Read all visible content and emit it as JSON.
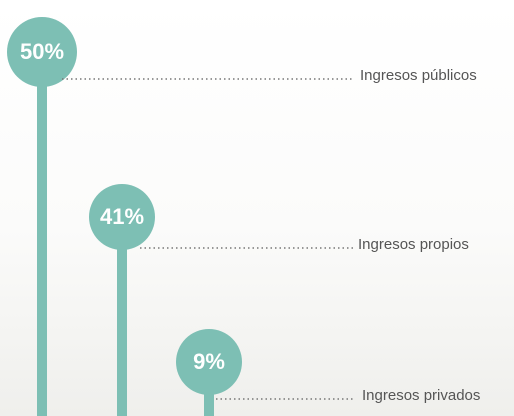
{
  "chart_data": {
    "type": "lollipop",
    "categories": [
      "Ingresos públicos",
      "Ingresos propios",
      "Ingresos privados"
    ],
    "values": [
      50,
      41,
      9
    ],
    "value_labels": [
      "50%",
      "41%",
      "9%"
    ],
    "color": "#7dbfb4"
  }
}
